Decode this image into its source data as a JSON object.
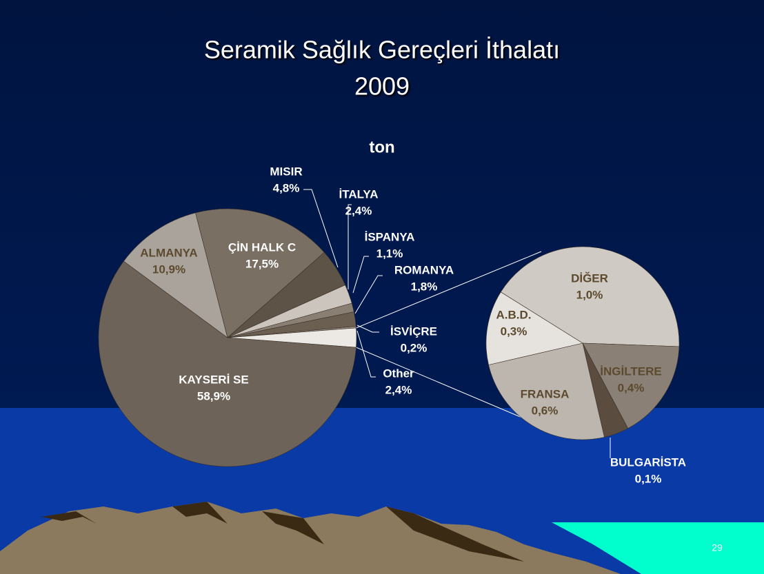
{
  "slide": {
    "title": "Seramik Sağlık Gereçleri  İthalatı",
    "subtitle": "2009",
    "slide_number": "29"
  },
  "chart_data": {
    "type": "pie-of-pie",
    "title": "ton",
    "categories": [
      "KAYSERİ SE",
      "ALMANYA",
      "ÇİN HALK C",
      "MISIR",
      "İTALYA",
      "İSPANYA",
      "ROMANYA",
      "İSVİÇRE",
      "Other"
    ],
    "values": [
      58.9,
      10.9,
      17.5,
      4.8,
      2.4,
      1.1,
      1.8,
      0.2,
      2.4
    ],
    "value_labels": [
      "58,9%",
      "10,9%",
      "17,5%",
      "4,8%",
      "2,4%",
      "1,1%",
      "1,8%",
      "0,2%",
      "2,4%"
    ],
    "colors": [
      "#6e6358",
      "#aaa39b",
      "#7a6f63",
      "#5e5347",
      "#cbc5be",
      "#8a7f73",
      "#6b5f52",
      "#9a8f83",
      "#ece9e5"
    ],
    "breakdown": {
      "categories": [
        "DİĞER",
        "İNGİLTERE",
        "BULGARİSTA",
        "FRANSA",
        "A.B.D."
      ],
      "values": [
        1.0,
        0.4,
        0.1,
        0.6,
        0.3
      ],
      "value_labels": [
        "1,0%",
        "0,4%",
        "0,1%",
        "0,6%",
        "0,3%"
      ],
      "colors": [
        "#cfcac4",
        "#8a8075",
        "#5a4d40",
        "#bdb6ae",
        "#e6e3df"
      ]
    }
  }
}
